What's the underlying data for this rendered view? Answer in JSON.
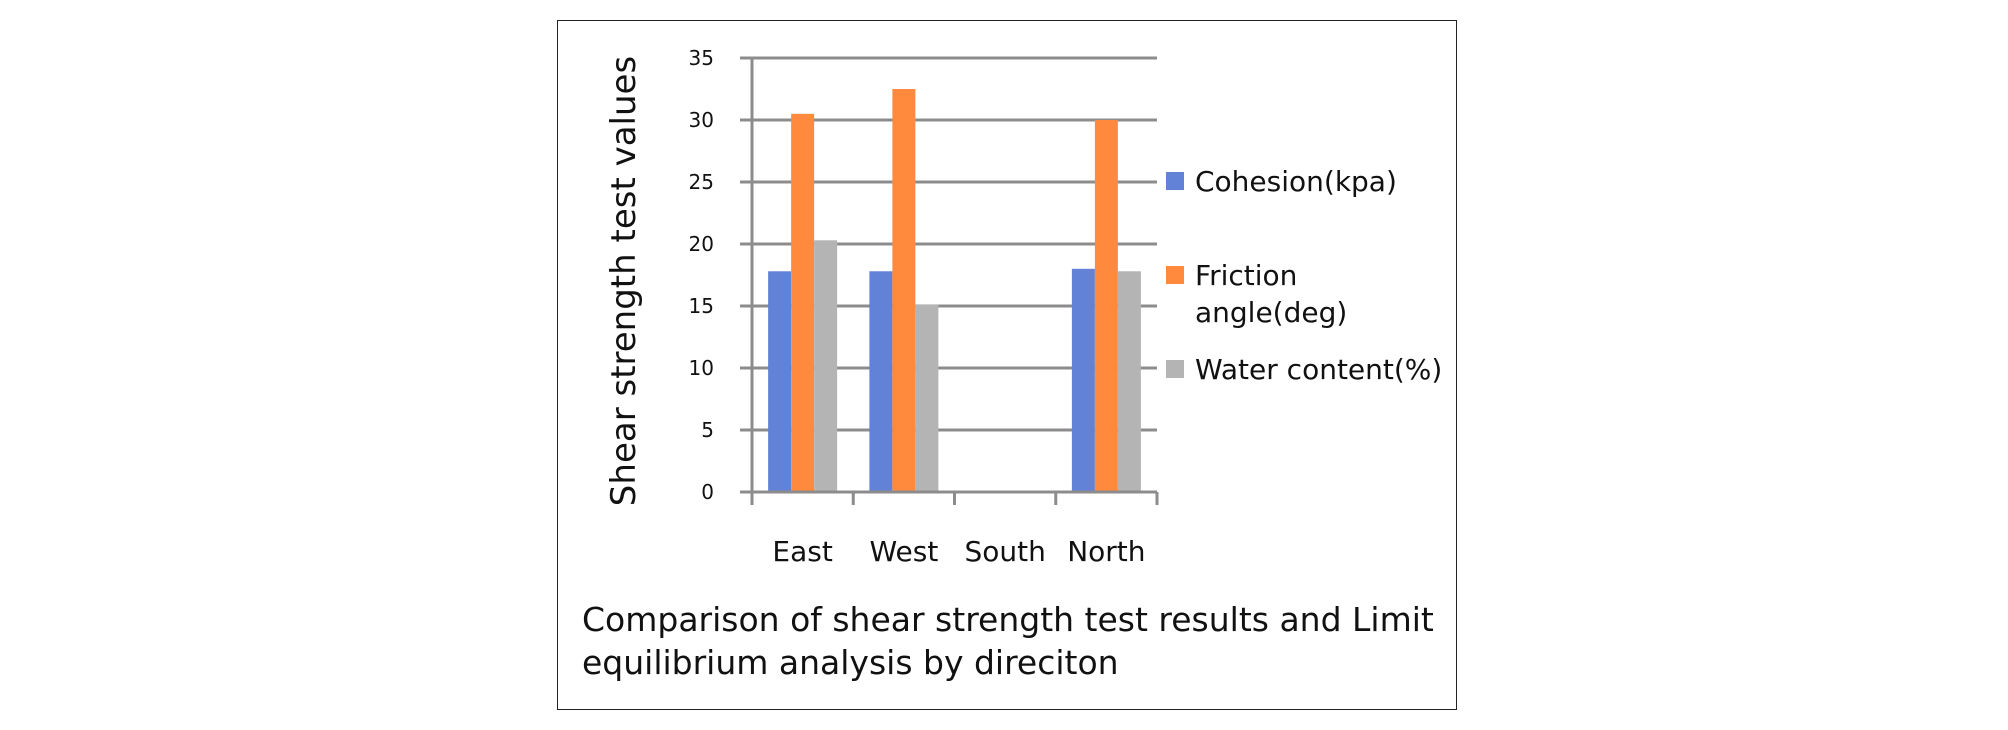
{
  "chart_data": {
    "type": "bar",
    "ylabel": "Shear strength test values",
    "xlabel": "",
    "categories": [
      "East",
      "West",
      "South",
      "North"
    ],
    "series": [
      {
        "name": "Cohesion(kpa)",
        "values": [
          17.8,
          17.8,
          null,
          18.0
        ],
        "color": "#6182D6"
      },
      {
        "name": "Friction angle(deg)",
        "values": [
          30.5,
          32.5,
          null,
          30.0
        ],
        "color": "#FF8A3D"
      },
      {
        "name": "Water content(%)",
        "values": [
          20.3,
          15.1,
          null,
          17.8
        ],
        "color": "#B4B4B4"
      }
    ],
    "ylim": [
      0,
      35
    ],
    "yticks": [
      0,
      5,
      10,
      15,
      20,
      25,
      30,
      35
    ],
    "grid": true,
    "legend_position": "right"
  },
  "caption": "Comparison of shear strength test results and Limit equilibrium analysis by direciton",
  "colors": {
    "gridline": "#8C8C8C",
    "axis": "#8C8C8C",
    "frame": "#222222"
  }
}
